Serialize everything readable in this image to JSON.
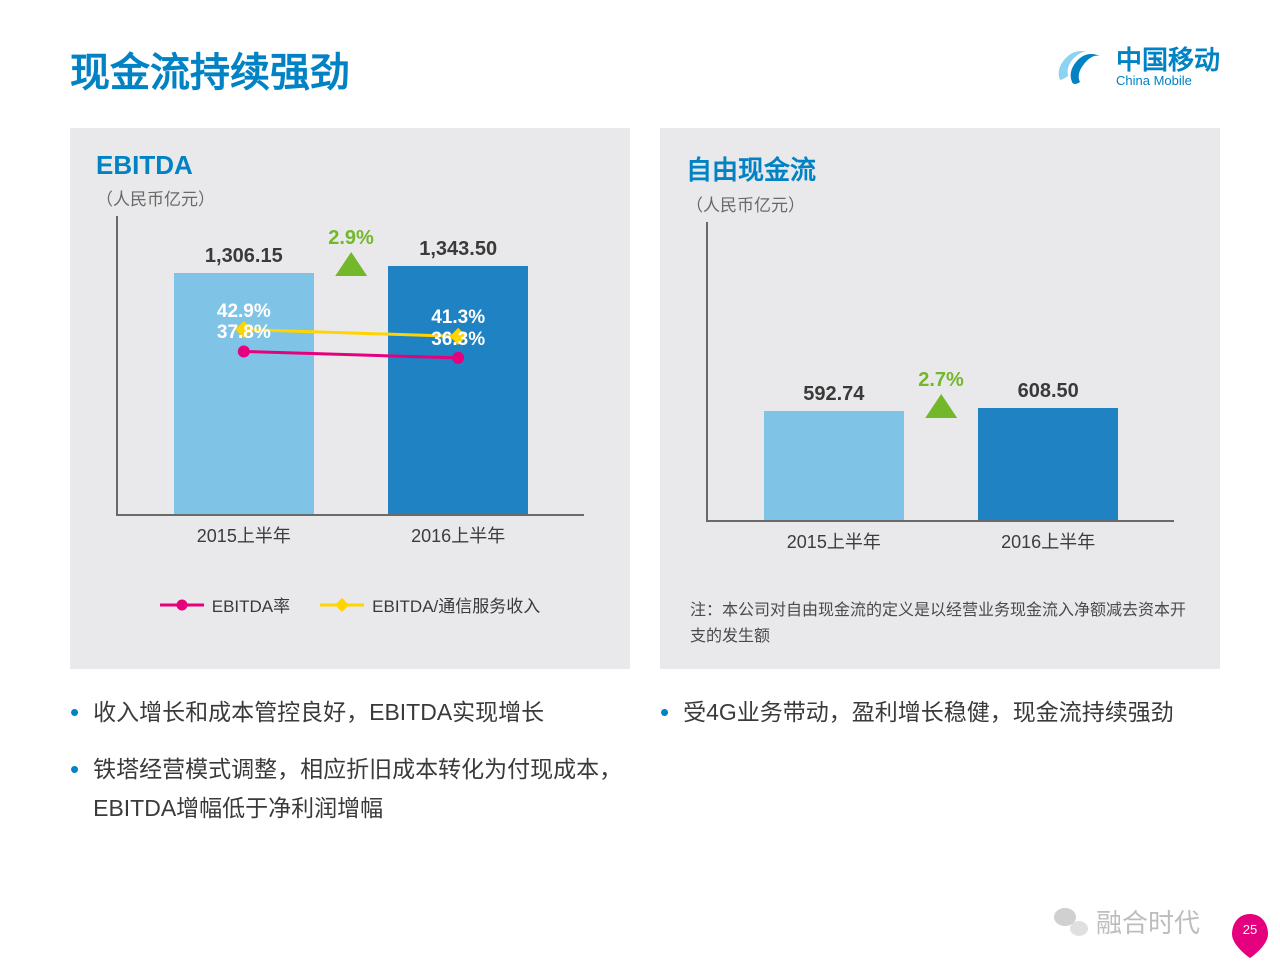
{
  "page": {
    "title": "现金流持续强劲",
    "page_number": "25",
    "logo": {
      "cn": "中国移动",
      "en": "China Mobile"
    },
    "footer_brand": "融合时代"
  },
  "colors": {
    "accent": "#0082c4",
    "panel_bg": "#e9e9eb",
    "bar_light": "#7fc4e6",
    "bar_dark": "#1e82c3",
    "growth_green": "#73b72b",
    "magenta": "#e5007e",
    "yellow": "#ffd400",
    "axis": "#6a6a6a",
    "text_dark": "#3a3a3a"
  },
  "ebitda": {
    "title": "EBITDA",
    "unit": "（人民币亿元）",
    "categories": [
      "2015上半年",
      "2016上半年"
    ],
    "values": [
      1306.15,
      1343.5
    ],
    "value_labels": [
      "1,306.15",
      "1,343.50"
    ],
    "bar_colors": [
      "#7fc4e6",
      "#1e82c3"
    ],
    "growth_label": "2.9%",
    "ymax": 1400,
    "series": [
      {
        "name": "EBITDA率",
        "color": "#e5007e",
        "marker": "circle",
        "points": [
          37.8,
          36.3
        ],
        "labels": [
          "37.8%",
          "36.3%"
        ]
      },
      {
        "name": "EBITDA/通信服务收入",
        "color": "#ffd400",
        "marker": "diamond",
        "points": [
          42.9,
          41.3
        ],
        "labels": [
          "42.9%",
          "41.3%"
        ]
      }
    ],
    "legend": [
      {
        "label": "EBITDA率",
        "color": "#e5007e",
        "marker": "circle"
      },
      {
        "label": "EBITDA/通信服务收入",
        "color": "#ffd400",
        "marker": "diamond"
      }
    ]
  },
  "fcf": {
    "title": "自由现金流",
    "unit": "（人民币亿元）",
    "categories": [
      "2015上半年",
      "2016上半年"
    ],
    "values": [
      592.74,
      608.5
    ],
    "value_labels": [
      "592.74",
      "608.50"
    ],
    "bar_colors": [
      "#7fc4e6",
      "#1e82c3"
    ],
    "growth_label": "2.7%",
    "ymax": 1400,
    "note": "注：本公司对自由现金流的定义是以经营业务现金流入净额减去资本开支的发生额"
  },
  "bullets_left": [
    "收入增长和成本管控良好，EBITDA实现增长",
    "铁塔经营模式调整，相应折旧成本转化为付现成本，EBITDA增幅低于净利润增幅"
  ],
  "bullets_right": [
    "受4G业务带动，盈利增长稳健，现金流持续强劲"
  ]
}
